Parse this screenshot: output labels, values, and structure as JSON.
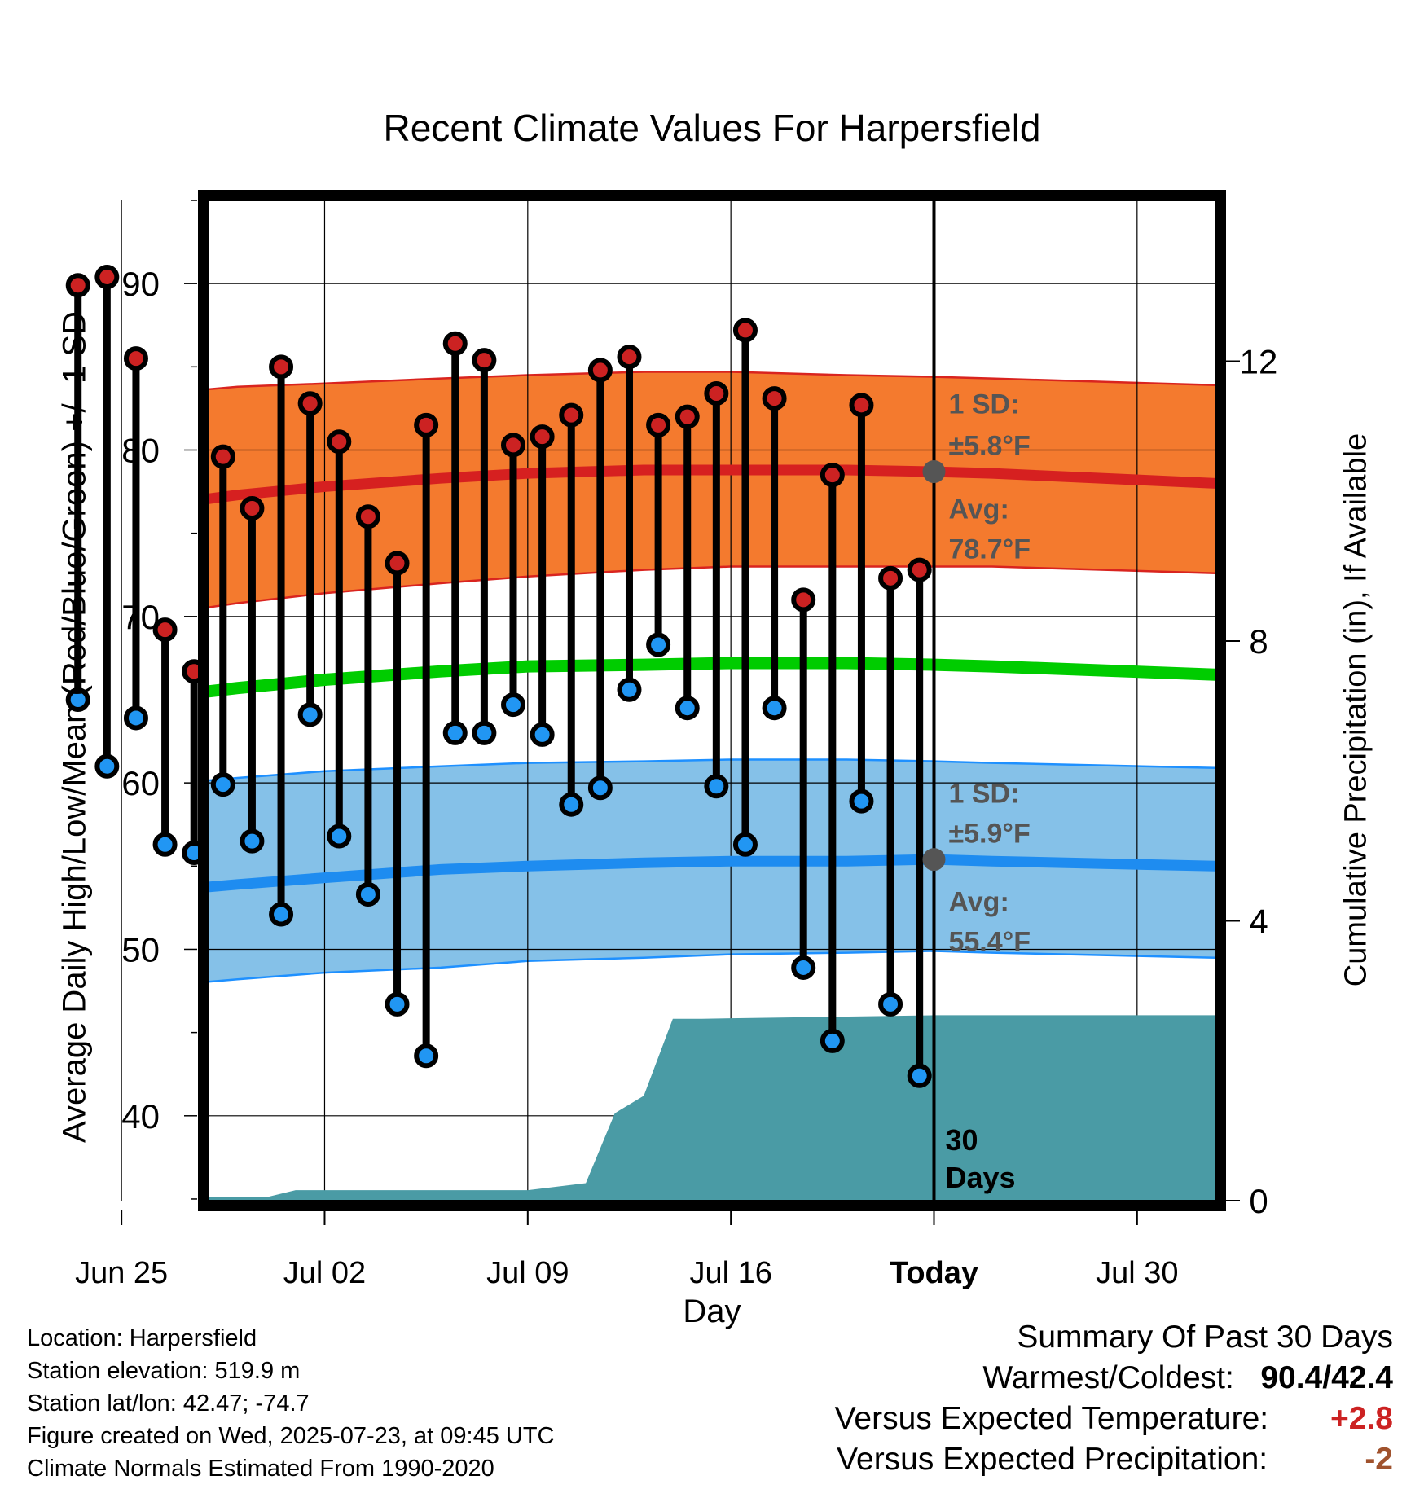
{
  "title": "Recent Climate Values For Harpersfield",
  "colors": {
    "high_band": "#f47a2e",
    "high_band_edge": "#d9241f",
    "avg_high": "#d62020",
    "low_band": "#85c1e8",
    "low_band_edge": "#1e90ff",
    "avg_low": "#1e8cf0",
    "mean": "#00cc00",
    "precip": "#4a9ba5",
    "high_dot": "#cc2222",
    "low_dot": "#2196f3",
    "annot": "#555555"
  },
  "chart_data": {
    "type": "line",
    "title": "Recent Climate Values For Harpersfield",
    "xlabel": "Day",
    "ylabel": "Average Daily High/Low/Mean (Red/Blue/Green) +/- 1 SD",
    "y2label": "Cumulative Precipitation (in), If Available",
    "ylim": [
      34.9,
      95
    ],
    "y_ticks": [
      40,
      50,
      60,
      70,
      80,
      90
    ],
    "y2lim": [
      0,
      14.3
    ],
    "y2_ticks": [
      0,
      4,
      8,
      12
    ],
    "x_ticks": [
      "Jun 25",
      "Jul 02",
      "Jul 09",
      "Jul 16",
      "Today",
      "Jul 30"
    ],
    "x_range_days": [
      -25.0,
      9.7
    ],
    "grid": true,
    "daily": [
      {
        "day": -30,
        "high": 89.9,
        "low": 65.0
      },
      {
        "day": -29,
        "high": 90.4,
        "low": 61.0
      },
      {
        "day": -28,
        "high": 85.5,
        "low": 63.9
      },
      {
        "day": -27,
        "high": 69.2,
        "low": 56.3
      },
      {
        "day": -26,
        "high": 66.7,
        "low": 55.8
      },
      {
        "day": -25,
        "high": 79.6,
        "low": 59.9
      },
      {
        "day": -24,
        "high": 76.5,
        "low": 56.5
      },
      {
        "day": -23,
        "high": 85.0,
        "low": 52.1
      },
      {
        "day": -22,
        "high": 82.8,
        "low": 64.1
      },
      {
        "day": -21,
        "high": 80.5,
        "low": 56.8
      },
      {
        "day": -20,
        "high": 76.0,
        "low": 53.3
      },
      {
        "day": -19,
        "high": 73.2,
        "low": 46.7
      },
      {
        "day": -18,
        "high": 81.5,
        "low": 43.6
      },
      {
        "day": -17,
        "high": 86.4,
        "low": 63.0
      },
      {
        "day": -16,
        "high": 85.4,
        "low": 63.0
      },
      {
        "day": -15,
        "high": 80.3,
        "low": 64.7
      },
      {
        "day": -14,
        "high": 80.8,
        "low": 62.9
      },
      {
        "day": -13,
        "high": 82.1,
        "low": 58.7
      },
      {
        "day": -12,
        "high": 84.8,
        "low": 59.7
      },
      {
        "day": -11,
        "high": 85.6,
        "low": 65.6
      },
      {
        "day": -10,
        "high": 81.5,
        "low": 68.3
      },
      {
        "day": -9,
        "high": 82.0,
        "low": 64.5
      },
      {
        "day": -8,
        "high": 83.4,
        "low": 59.8
      },
      {
        "day": -7,
        "high": 87.2,
        "low": 56.3
      },
      {
        "day": -6,
        "high": 83.1,
        "low": 64.5
      },
      {
        "day": -5,
        "high": 71.0,
        "low": 48.9
      },
      {
        "day": -4,
        "high": 78.5,
        "low": 44.5
      },
      {
        "day": -3,
        "high": 82.7,
        "low": 58.9
      },
      {
        "day": -2,
        "high": 72.3,
        "low": 46.7
      },
      {
        "day": -1,
        "high": 72.8,
        "low": 42.4
      }
    ],
    "normals": {
      "days": [
        -31,
        -28,
        -24,
        -21,
        -17,
        -14,
        -10,
        -7,
        -3,
        0,
        2,
        9.7
      ],
      "avg_high": [
        75.6,
        76.4,
        77.3,
        77.8,
        78.3,
        78.6,
        78.8,
        78.8,
        78.8,
        78.7,
        78.6,
        78.0
      ],
      "avg_low": [
        52.7,
        53.3,
        53.9,
        54.3,
        54.8,
        55.0,
        55.2,
        55.3,
        55.3,
        55.4,
        55.3,
        55.0
      ],
      "mean": [
        64.1,
        64.9,
        65.7,
        66.2,
        66.7,
        67.0,
        67.1,
        67.2,
        67.2,
        67.1,
        67.0,
        66.5
      ],
      "high_upper": [
        82.6,
        83.2,
        83.8,
        84.0,
        84.3,
        84.5,
        84.7,
        84.7,
        84.5,
        84.4,
        84.3,
        83.9
      ],
      "high_lower": [
        68.8,
        69.8,
        70.8,
        71.4,
        72.0,
        72.4,
        72.8,
        73.0,
        73.0,
        73.0,
        73.0,
        72.6
      ],
      "low_upper": [
        59.2,
        59.7,
        60.3,
        60.7,
        61.0,
        61.2,
        61.3,
        61.4,
        61.4,
        61.3,
        61.2,
        60.9
      ],
      "low_lower": [
        46.8,
        47.6,
        48.2,
        48.6,
        48.9,
        49.3,
        49.5,
        49.7,
        49.8,
        49.9,
        49.8,
        49.5
      ]
    },
    "precip_cumulative": {
      "days": [
        -31,
        -25,
        -23,
        -22,
        -21,
        -14,
        -12,
        -11,
        -10,
        -9,
        -8,
        0,
        9.7
      ],
      "values": [
        0,
        0.05,
        0.05,
        0.15,
        0.15,
        0.15,
        0.25,
        1.25,
        1.5,
        2.6,
        2.6,
        2.65,
        2.65
      ]
    }
  },
  "annotations": {
    "high_sd_label": "1 SD:",
    "high_sd_value": "±5.8°F",
    "high_avg_label": "Avg:",
    "high_avg_value": "78.7°F",
    "low_sd_label": "1 SD:",
    "low_sd_value": "±5.9°F",
    "low_avg_label": "Avg:",
    "low_avg_value": "55.4°F",
    "window_label_1": "30",
    "window_label_2": "Days"
  },
  "info": {
    "location": "Location: Harpersfield",
    "elevation": "Station elevation: 519.9 m",
    "latlon": "Station lat/lon: 42.47; -74.7",
    "created": "Figure created on Wed, 2025-07-23, at 09:45 UTC",
    "normals": "Climate Normals Estimated From 1990-2020"
  },
  "summary": {
    "heading": "Summary Of Past 30 Days",
    "warm_cold_label": "Warmest/Coldest:",
    "warm_cold_value": "90.4/42.4",
    "temp_label": "Versus Expected Temperature:",
    "temp_value": "+2.8",
    "precip_label": "Versus Expected Precipitation:",
    "precip_value": "-2"
  }
}
